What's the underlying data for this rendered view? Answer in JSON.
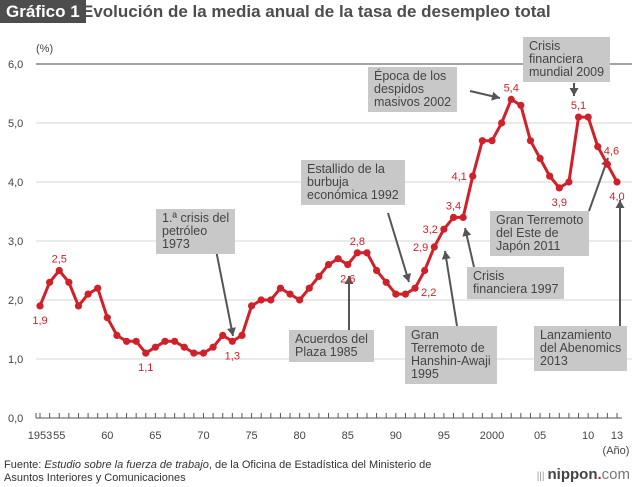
{
  "header": {
    "badge": "Gráfico 1",
    "title": "Evolución de la media anual de la tasa de desempleo total"
  },
  "chart_data": {
    "type": "line",
    "title": "Evolución de la media anual de la tasa de desempleo total",
    "ylabel": "(%)",
    "xlabel": "(Año)",
    "ylim": [
      0,
      6
    ],
    "xlim": [
      1953,
      2013
    ],
    "yticks": [
      0,
      1,
      2,
      3,
      4,
      5,
      6
    ],
    "ytick_labels": [
      "0,0",
      "1,0",
      "2,0",
      "3,0",
      "4,0",
      "5,0",
      "6,0"
    ],
    "xtick_labels": [
      {
        "year": 1953,
        "label": "1953"
      },
      {
        "year": 1955,
        "label": "55"
      },
      {
        "year": 1960,
        "label": "60"
      },
      {
        "year": 1965,
        "label": "65"
      },
      {
        "year": 1970,
        "label": "70"
      },
      {
        "year": 1975,
        "label": "75"
      },
      {
        "year": 1980,
        "label": "80"
      },
      {
        "year": 1985,
        "label": "85"
      },
      {
        "year": 1990,
        "label": "90"
      },
      {
        "year": 1995,
        "label": "95"
      },
      {
        "year": 2000,
        "label": "2000"
      },
      {
        "year": 2005,
        "label": "05"
      },
      {
        "year": 2010,
        "label": "10"
      },
      {
        "year": 2013,
        "label": "13"
      }
    ],
    "grid": true,
    "series": [
      {
        "name": "Tasa de desempleo",
        "color": "#d0212b",
        "x": [
          1953,
          1954,
          1955,
          1956,
          1957,
          1958,
          1959,
          1960,
          1961,
          1962,
          1963,
          1964,
          1965,
          1966,
          1967,
          1968,
          1969,
          1970,
          1971,
          1972,
          1973,
          1974,
          1975,
          1976,
          1977,
          1978,
          1979,
          1980,
          1981,
          1982,
          1983,
          1984,
          1985,
          1986,
          1987,
          1988,
          1989,
          1990,
          1991,
          1992,
          1993,
          1994,
          1995,
          1996,
          1997,
          1998,
          1999,
          2000,
          2001,
          2002,
          2003,
          2004,
          2005,
          2006,
          2007,
          2008,
          2009,
          2010,
          2011,
          2012,
          2013
        ],
        "values": [
          1.9,
          2.3,
          2.5,
          2.3,
          1.9,
          2.1,
          2.2,
          1.7,
          1.4,
          1.3,
          1.3,
          1.1,
          1.2,
          1.3,
          1.3,
          1.2,
          1.1,
          1.1,
          1.2,
          1.4,
          1.3,
          1.4,
          1.9,
          2.0,
          2.0,
          2.2,
          2.1,
          2.0,
          2.2,
          2.4,
          2.6,
          2.7,
          2.6,
          2.8,
          2.8,
          2.5,
          2.3,
          2.1,
          2.1,
          2.2,
          2.5,
          2.9,
          3.2,
          3.4,
          3.4,
          4.1,
          4.7,
          4.7,
          5.0,
          5.4,
          5.3,
          4.7,
          4.4,
          4.1,
          3.9,
          4.0,
          5.1,
          5.1,
          4.6,
          4.3,
          4.0
        ]
      }
    ],
    "data_labels": [
      {
        "year": 1953,
        "text": "1,9",
        "pos": "below"
      },
      {
        "year": 1955,
        "text": "2,5",
        "pos": "above"
      },
      {
        "year": 1964,
        "text": "1,1",
        "pos": "below"
      },
      {
        "year": 1973,
        "text": "1,3",
        "pos": "below"
      },
      {
        "year": 1985,
        "text": "2,6",
        "pos": "below"
      },
      {
        "year": 1986,
        "text": "2,8",
        "pos": "above"
      },
      {
        "year": 1992,
        "text": "2,2",
        "pos": "right"
      },
      {
        "year": 1994,
        "text": "2,9",
        "pos": "left"
      },
      {
        "year": 1995,
        "text": "3,2",
        "pos": "left"
      },
      {
        "year": 1996,
        "text": "3,4",
        "pos": "above"
      },
      {
        "year": 1998,
        "text": "4,1",
        "pos": "left"
      },
      {
        "year": 2002,
        "text": "5,4",
        "pos": "above"
      },
      {
        "year": 2007,
        "text": "3,9",
        "pos": "below"
      },
      {
        "year": 2009,
        "text": "5,1",
        "pos": "above"
      },
      {
        "year": 2011,
        "text": "4,6",
        "pos": "right"
      },
      {
        "year": 2013,
        "text": "4,0",
        "pos": "below"
      }
    ],
    "annotations": [
      {
        "text": "1.ª crisis del\npetróleo\n1973",
        "year": 1973
      },
      {
        "text": "Acuerdos del\nPlaza 1985",
        "year": 1985
      },
      {
        "text": "Estallido de la\nburbuja\neconómica 1992",
        "year": 1992
      },
      {
        "text": "Gran\nTerremoto de\nHanshin-Awaji\n1995",
        "year": 1995
      },
      {
        "text": "Crisis\nfinanciera 1997",
        "year": 1997
      },
      {
        "text": "Época de los\ndespidos\nmasivos 2002",
        "year": 2002
      },
      {
        "text": "Crisis\nfinanciera\nmundial 2009",
        "year": 2009
      },
      {
        "text": "Gran Terremoto\ndel Este de\nJapón 2011",
        "year": 2011
      },
      {
        "text": "Lanzamiento\ndel Abenomics\n2013",
        "year": 2013
      }
    ]
  },
  "footer": {
    "source_prefix": "Fuente: ",
    "source_title": "Estudio sobre la fuerza de trabajo",
    "source_rest": ", de la Oficina de Estadística del Ministerio de",
    "source_line2": "Asuntos Interiores y Comunicaciones",
    "logo_main": "nippon",
    "logo_dot": ".",
    "logo_com": "com"
  }
}
